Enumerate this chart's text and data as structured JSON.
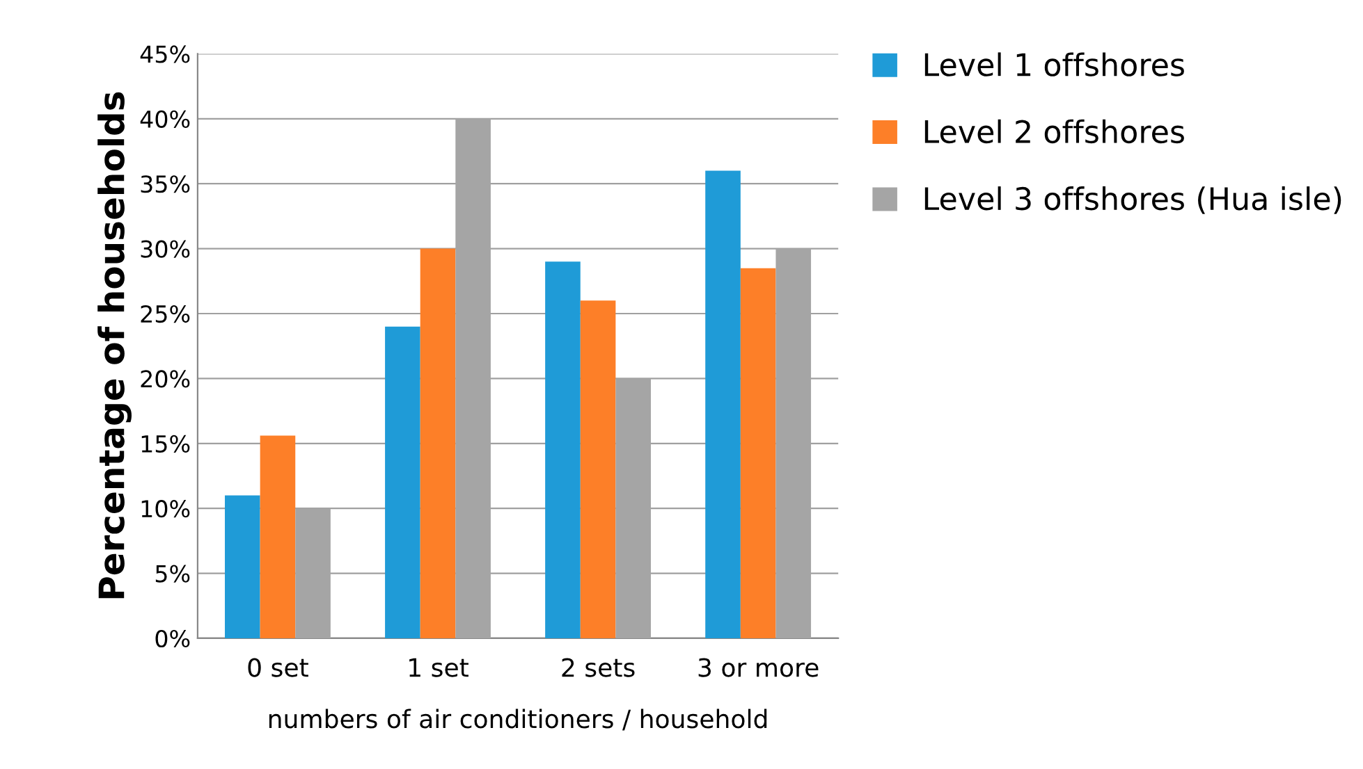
{
  "chart_data": {
    "type": "bar",
    "xlabel": "numbers of air conditioners / household",
    "ylabel": "Percentage of households",
    "categories": [
      "0 set",
      "1 set",
      "2 sets",
      "3 or more"
    ],
    "series": [
      {
        "name": "Level 1 offshores",
        "color": "#1f9bd7",
        "values": [
          11,
          24,
          29,
          36
        ]
      },
      {
        "name": "Level 2 offshores",
        "color": "#fd7f28",
        "values": [
          15.6,
          30,
          26,
          28.5
        ]
      },
      {
        "name": "Level 3 offshores (Hua isle)",
        "color": "#a5a5a5",
        "values": [
          10,
          40,
          20,
          30
        ]
      }
    ],
    "ylim": [
      0,
      45
    ],
    "yticks": [
      {
        "value": 0,
        "label": "0%"
      },
      {
        "value": 5,
        "label": "5%"
      },
      {
        "value": 10,
        "label": "10%"
      },
      {
        "value": 15,
        "label": "15%"
      },
      {
        "value": 20,
        "label": "20%"
      },
      {
        "value": 25,
        "label": "25%"
      },
      {
        "value": 30,
        "label": "30%"
      },
      {
        "value": 35,
        "label": "35%"
      },
      {
        "value": 40,
        "label": "40%"
      },
      {
        "value": 45,
        "label": "45%"
      }
    ],
    "grid": "y",
    "legend": "top right"
  }
}
